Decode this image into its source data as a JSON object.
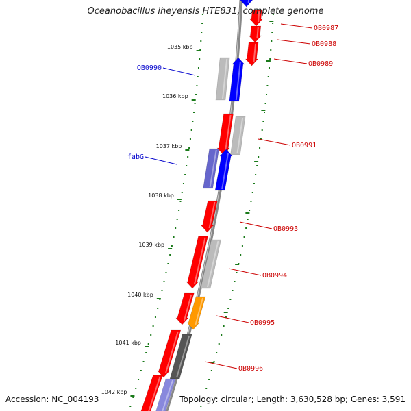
{
  "title": "Oceanobacillus iheyensis HTE831, complete genome",
  "footer": {
    "accession": "Accession: NC_004193",
    "summary": "Topology: circular; Length: 3,630,528 bp; Genes: 3,591"
  },
  "colors": {
    "backbone": "#888888",
    "forward_label": "#cc0000",
    "reverse_label": "#0000cc",
    "gc_ticks": "#1a7a1a",
    "cds_red": "#ff0000",
    "cds_blue": "#0000ff",
    "cds_gray": "#bbbbbb",
    "cds_orange": "#ff9900",
    "cds_dark": "#555555"
  },
  "kbp_labels": [
    "1035 kbp",
    "1036 kbp",
    "1037 kbp",
    "1038 kbp",
    "1039 kbp",
    "1040 kbp",
    "1041 kbp",
    "1042 kbp"
  ],
  "gene_labels": [
    {
      "text": "OB0987",
      "strand": "forward"
    },
    {
      "text": "OB0988",
      "strand": "forward"
    },
    {
      "text": "OB0989",
      "strand": "forward"
    },
    {
      "text": "OB0990",
      "strand": "reverse"
    },
    {
      "text": "OB0991",
      "strand": "forward"
    },
    {
      "text": "fabG",
      "strand": "reverse"
    },
    {
      "text": "OB0993",
      "strand": "forward"
    },
    {
      "text": "OB0994",
      "strand": "forward"
    },
    {
      "text": "OB0995",
      "strand": "forward"
    },
    {
      "text": "OB0996",
      "strand": "forward"
    }
  ]
}
